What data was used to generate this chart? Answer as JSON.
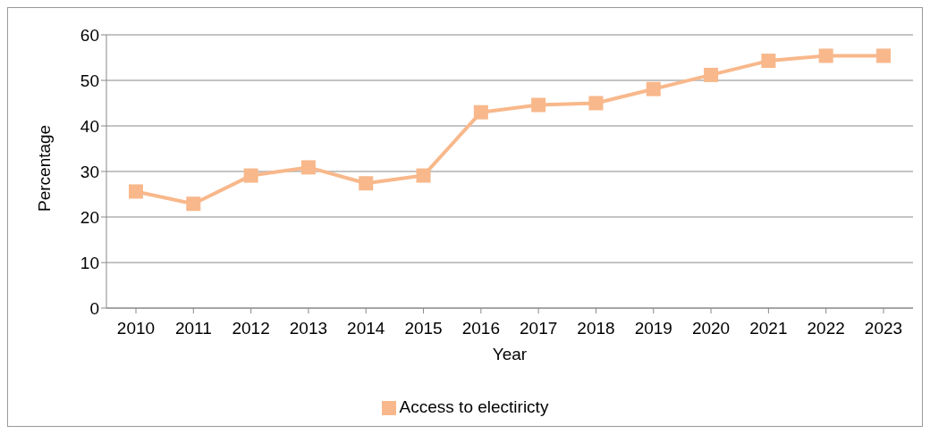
{
  "chart_data": {
    "type": "line",
    "xlabel": "Year",
    "ylabel": "Percentage",
    "categories": [
      "2010",
      "2011",
      "2012",
      "2013",
      "2014",
      "2015",
      "2016",
      "2017",
      "2018",
      "2019",
      "2020",
      "2021",
      "2022",
      "2023"
    ],
    "series": [
      {
        "name": "Access to electiricty",
        "color": "#f8b88b",
        "values": [
          25.6,
          22.9,
          29.1,
          30.9,
          27.4,
          29.1,
          43.0,
          44.6,
          45.0,
          48.1,
          51.2,
          54.3,
          55.4,
          55.4
        ]
      }
    ],
    "ylim": [
      0,
      60
    ],
    "yticks": [
      0,
      10,
      20,
      30,
      40,
      50,
      60
    ],
    "grid": "y",
    "legend": "bottom",
    "marker": "square",
    "line_style": "solid"
  }
}
